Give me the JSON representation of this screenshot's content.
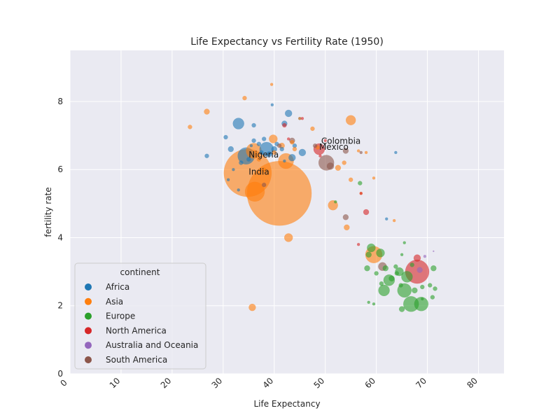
{
  "chart_data": {
    "type": "scatter",
    "title": "Life Expectancy vs Fertility Rate (1950)",
    "xlabel": "Life Expectancy",
    "ylabel": "fertility rate",
    "xlim": [
      0,
      85
    ],
    "ylim": [
      0,
      9.5
    ],
    "xticks": [
      0,
      10,
      20,
      30,
      40,
      50,
      60,
      70,
      80
    ],
    "yticks": [
      0,
      2,
      4,
      6,
      8
    ],
    "grid": true,
    "legend": {
      "title": "continent",
      "placement": "lower-left",
      "entries": [
        "Africa",
        "Asia",
        "Europe",
        "North America",
        "Australia and Oceania",
        "South America"
      ]
    },
    "colors": {
      "Africa": "#1f77b4",
      "Asia": "#ff7f0e",
      "Europe": "#2ca02c",
      "North America": "#d62728",
      "Australia and Oceania": "#9467bd",
      "South America": "#8c564b"
    },
    "annotations": [
      {
        "text": "Colombia",
        "x": 49.2,
        "y": 6.75
      },
      {
        "text": "Mexico",
        "x": 48.8,
        "y": 6.58
      },
      {
        "text": "Nigeria",
        "x": 35.0,
        "y": 6.35
      },
      {
        "text": "India",
        "x": 35.0,
        "y": 5.85
      }
    ],
    "series": [
      {
        "name": "Africa",
        "points": [
          {
            "x": 33.0,
            "y": 7.35,
            "size": 8
          },
          {
            "x": 42.8,
            "y": 7.65,
            "size": 5
          },
          {
            "x": 42.0,
            "y": 7.35,
            "size": 4
          },
          {
            "x": 39.6,
            "y": 7.9,
            "size": 2
          },
          {
            "x": 36.0,
            "y": 7.3,
            "size": 3
          },
          {
            "x": 38.5,
            "y": 6.6,
            "size": 10
          },
          {
            "x": 34.5,
            "y": 6.4,
            "size": 12
          },
          {
            "x": 43.5,
            "y": 6.35,
            "size": 5
          },
          {
            "x": 45.5,
            "y": 6.5,
            "size": 5
          },
          {
            "x": 40.5,
            "y": 6.75,
            "size": 3
          },
          {
            "x": 41.5,
            "y": 6.6,
            "size": 3
          },
          {
            "x": 38.0,
            "y": 6.9,
            "size": 3
          },
          {
            "x": 37.0,
            "y": 6.75,
            "size": 3
          },
          {
            "x": 36.0,
            "y": 6.85,
            "size": 3
          },
          {
            "x": 35.5,
            "y": 6.7,
            "size": 2
          },
          {
            "x": 39.0,
            "y": 6.45,
            "size": 4
          },
          {
            "x": 31.5,
            "y": 6.6,
            "size": 4
          },
          {
            "x": 30.5,
            "y": 6.95,
            "size": 3
          },
          {
            "x": 26.8,
            "y": 6.4,
            "size": 3
          },
          {
            "x": 33.5,
            "y": 6.2,
            "size": 3
          },
          {
            "x": 32.0,
            "y": 6.0,
            "size": 2
          },
          {
            "x": 31.0,
            "y": 5.7,
            "size": 2
          },
          {
            "x": 33.0,
            "y": 5.4,
            "size": 2
          },
          {
            "x": 63.8,
            "y": 6.5,
            "size": 2
          },
          {
            "x": 44.0,
            "y": 6.7,
            "size": 3
          },
          {
            "x": 37.5,
            "y": 6.5,
            "size": 3
          },
          {
            "x": 40.0,
            "y": 6.6,
            "size": 4
          },
          {
            "x": 35.0,
            "y": 6.3,
            "size": 3
          },
          {
            "x": 62.0,
            "y": 4.55,
            "size": 2
          },
          {
            "x": 42.0,
            "y": 6.25,
            "size": 2
          },
          {
            "x": 45.0,
            "y": 7.5,
            "size": 2
          }
        ]
      },
      {
        "name": "Asia",
        "points": [
          {
            "x": 34.8,
            "y": 5.9,
            "size": 34
          },
          {
            "x": 41.0,
            "y": 5.3,
            "size": 46
          },
          {
            "x": 36.2,
            "y": 5.35,
            "size": 14
          },
          {
            "x": 36.0,
            "y": 6.55,
            "size": 11
          },
          {
            "x": 42.3,
            "y": 6.25,
            "size": 11
          },
          {
            "x": 39.8,
            "y": 6.9,
            "size": 6
          },
          {
            "x": 55.0,
            "y": 7.45,
            "size": 7
          },
          {
            "x": 51.5,
            "y": 4.95,
            "size": 7
          },
          {
            "x": 42.8,
            "y": 4.0,
            "size": 6
          },
          {
            "x": 35.7,
            "y": 1.95,
            "size": 5
          },
          {
            "x": 59.5,
            "y": 3.5,
            "size": 12
          },
          {
            "x": 26.8,
            "y": 7.7,
            "size": 4
          },
          {
            "x": 23.5,
            "y": 7.25,
            "size": 3
          },
          {
            "x": 34.2,
            "y": 8.1,
            "size": 3
          },
          {
            "x": 47.5,
            "y": 7.2,
            "size": 3
          },
          {
            "x": 41.5,
            "y": 6.7,
            "size": 4
          },
          {
            "x": 52.5,
            "y": 6.05,
            "size": 4
          },
          {
            "x": 53.7,
            "y": 6.2,
            "size": 3
          },
          {
            "x": 55.0,
            "y": 5.7,
            "size": 3
          },
          {
            "x": 54.2,
            "y": 4.3,
            "size": 4
          },
          {
            "x": 45.0,
            "y": 7.5,
            "size": 2
          },
          {
            "x": 48.5,
            "y": 6.65,
            "size": 3
          },
          {
            "x": 38.0,
            "y": 6.0,
            "size": 3
          },
          {
            "x": 37.0,
            "y": 6.3,
            "size": 3
          },
          {
            "x": 56.5,
            "y": 6.55,
            "size": 2
          },
          {
            "x": 58.0,
            "y": 6.5,
            "size": 2
          },
          {
            "x": 59.5,
            "y": 5.75,
            "size": 2
          },
          {
            "x": 63.5,
            "y": 4.5,
            "size": 2
          },
          {
            "x": 43.5,
            "y": 6.8,
            "size": 3
          },
          {
            "x": 40.0,
            "y": 6.5,
            "size": 3
          },
          {
            "x": 39.5,
            "y": 8.5,
            "size": 2
          },
          {
            "x": 57.0,
            "y": 5.3,
            "size": 2
          },
          {
            "x": 44.0,
            "y": 6.6,
            "size": 3
          }
        ]
      },
      {
        "name": "Europe",
        "points": [
          {
            "x": 66.8,
            "y": 2.05,
            "size": 11
          },
          {
            "x": 68.8,
            "y": 2.05,
            "size": 10
          },
          {
            "x": 65.5,
            "y": 2.45,
            "size": 10
          },
          {
            "x": 61.5,
            "y": 2.45,
            "size": 8
          },
          {
            "x": 62.5,
            "y": 2.75,
            "size": 8
          },
          {
            "x": 66.0,
            "y": 2.85,
            "size": 8
          },
          {
            "x": 64.5,
            "y": 3.0,
            "size": 6
          },
          {
            "x": 60.8,
            "y": 3.55,
            "size": 6
          },
          {
            "x": 59.0,
            "y": 3.7,
            "size": 6
          },
          {
            "x": 58.5,
            "y": 3.5,
            "size": 4
          },
          {
            "x": 58.2,
            "y": 3.1,
            "size": 4
          },
          {
            "x": 61.8,
            "y": 3.1,
            "size": 4
          },
          {
            "x": 63.0,
            "y": 2.8,
            "size": 4
          },
          {
            "x": 64.8,
            "y": 2.6,
            "size": 3
          },
          {
            "x": 65.0,
            "y": 1.9,
            "size": 4
          },
          {
            "x": 67.5,
            "y": 2.45,
            "size": 4
          },
          {
            "x": 69.0,
            "y": 2.55,
            "size": 3
          },
          {
            "x": 70.5,
            "y": 2.6,
            "size": 3
          },
          {
            "x": 71.2,
            "y": 3.1,
            "size": 4
          },
          {
            "x": 71.5,
            "y": 2.5,
            "size": 3
          },
          {
            "x": 71.0,
            "y": 2.25,
            "size": 3
          },
          {
            "x": 60.0,
            "y": 2.95,
            "size": 3
          },
          {
            "x": 63.8,
            "y": 3.15,
            "size": 3
          },
          {
            "x": 67.0,
            "y": 3.2,
            "size": 3
          },
          {
            "x": 65.5,
            "y": 3.85,
            "size": 2
          },
          {
            "x": 64.0,
            "y": 2.95,
            "size": 3
          },
          {
            "x": 56.8,
            "y": 5.6,
            "size": 3
          },
          {
            "x": 52.0,
            "y": 5.05,
            "size": 2
          },
          {
            "x": 59.5,
            "y": 2.05,
            "size": 2
          },
          {
            "x": 58.5,
            "y": 2.1,
            "size": 2
          },
          {
            "x": 69.0,
            "y": 2.2,
            "size": 2
          },
          {
            "x": 61.0,
            "y": 2.65,
            "size": 3
          },
          {
            "x": 65.0,
            "y": 3.5,
            "size": 2
          }
        ]
      },
      {
        "name": "North America",
        "points": [
          {
            "x": 68.0,
            "y": 3.0,
            "size": 17
          },
          {
            "x": 48.8,
            "y": 6.6,
            "size": 8
          },
          {
            "x": 68.0,
            "y": 3.4,
            "size": 5
          },
          {
            "x": 58.0,
            "y": 4.75,
            "size": 4
          },
          {
            "x": 42.0,
            "y": 7.3,
            "size": 3
          },
          {
            "x": 45.5,
            "y": 7.5,
            "size": 2
          },
          {
            "x": 56.5,
            "y": 3.8,
            "size": 2
          },
          {
            "x": 57.0,
            "y": 5.3,
            "size": 2
          },
          {
            "x": 42.8,
            "y": 6.9,
            "size": 2
          },
          {
            "x": 50.0,
            "y": 6.85,
            "size": 2
          },
          {
            "x": 49.0,
            "y": 6.4,
            "size": 2
          }
        ]
      },
      {
        "name": "Australia and Oceania",
        "points": [
          {
            "x": 68.5,
            "y": 3.05,
            "size": 4
          },
          {
            "x": 69.5,
            "y": 3.45,
            "size": 2
          },
          {
            "x": 71.2,
            "y": 3.6,
            "size": 1
          }
        ]
      },
      {
        "name": "South America",
        "points": [
          {
            "x": 50.2,
            "y": 6.2,
            "size": 11
          },
          {
            "x": 61.2,
            "y": 3.15,
            "size": 6
          },
          {
            "x": 51.0,
            "y": 6.1,
            "size": 5
          },
          {
            "x": 43.5,
            "y": 6.85,
            "size": 4
          },
          {
            "x": 54.0,
            "y": 6.55,
            "size": 4
          },
          {
            "x": 54.0,
            "y": 4.6,
            "size": 4
          },
          {
            "x": 38.0,
            "y": 5.55,
            "size": 3
          },
          {
            "x": 48.0,
            "y": 6.7,
            "size": 3
          },
          {
            "x": 41.0,
            "y": 6.7,
            "size": 3
          },
          {
            "x": 57.0,
            "y": 6.5,
            "size": 2
          }
        ]
      }
    ]
  }
}
